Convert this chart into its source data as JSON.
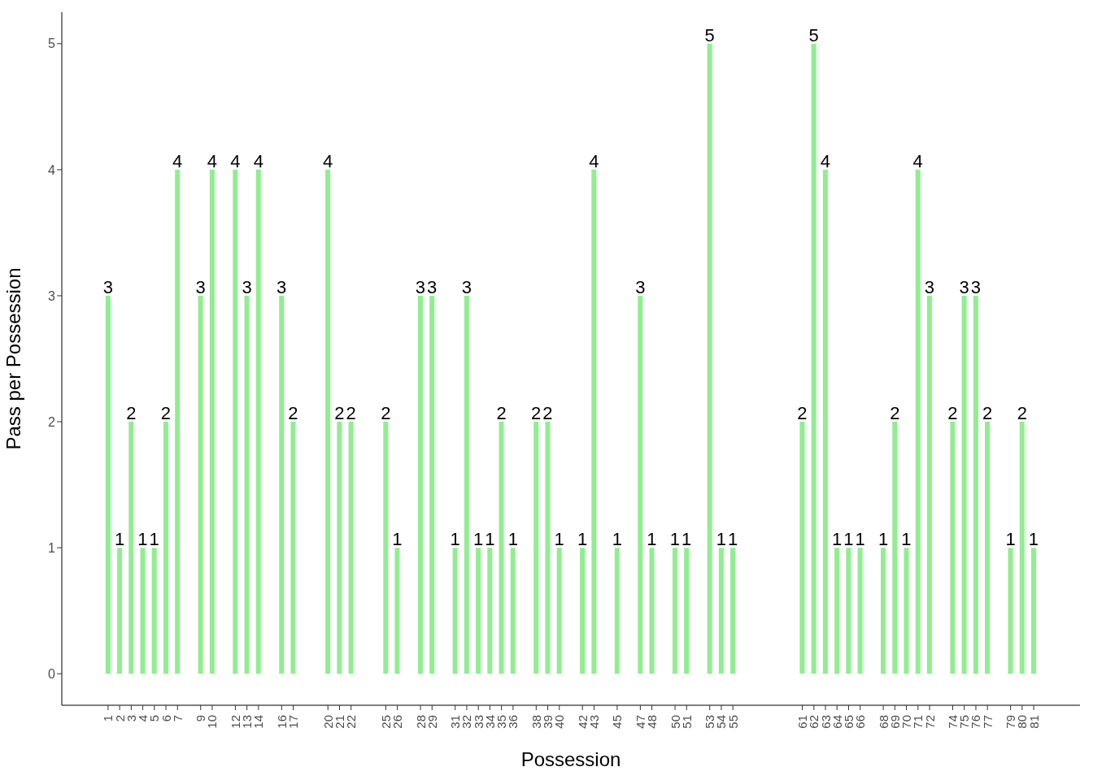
{
  "chart_data": {
    "type": "bar",
    "xlabel": "Possession",
    "ylabel": "Pass per Possession",
    "x": [
      1,
      2,
      3,
      4,
      5,
      6,
      7,
      9,
      10,
      12,
      13,
      14,
      16,
      17,
      20,
      21,
      22,
      25,
      26,
      28,
      29,
      31,
      32,
      33,
      34,
      35,
      36,
      38,
      39,
      40,
      42,
      43,
      45,
      47,
      48,
      50,
      51,
      53,
      54,
      55,
      61,
      62,
      63,
      64,
      65,
      66,
      68,
      69,
      70,
      71,
      72,
      74,
      75,
      76,
      77,
      79,
      80,
      81
    ],
    "values": [
      3,
      1,
      2,
      1,
      1,
      2,
      4,
      3,
      4,
      4,
      3,
      4,
      3,
      2,
      4,
      2,
      2,
      2,
      1,
      3,
      3,
      1,
      3,
      1,
      1,
      2,
      1,
      2,
      2,
      1,
      1,
      4,
      1,
      3,
      1,
      1,
      1,
      5,
      1,
      1,
      2,
      5,
      4,
      1,
      1,
      1,
      1,
      2,
      1,
      4,
      3,
      2,
      3,
      3,
      2,
      1,
      2,
      1
    ],
    "color": "#90ee90",
    "xlim": [
      -3,
      85
    ],
    "xticks": [
      1,
      2,
      3,
      4,
      5,
      6,
      7,
      9,
      10,
      12,
      13,
      14,
      16,
      17,
      20,
      21,
      22,
      25,
      26,
      28,
      29,
      31,
      32,
      33,
      34,
      35,
      36,
      38,
      39,
      40,
      42,
      43,
      45,
      47,
      48,
      50,
      51,
      53,
      54,
      55,
      61,
      62,
      63,
      64,
      65,
      66,
      68,
      69,
      70,
      71,
      72,
      74,
      75,
      76,
      77,
      79,
      80,
      81
    ],
    "ylim": [
      -0.25,
      5.25
    ],
    "yticks": [
      0,
      1,
      2,
      3,
      4,
      5
    ],
    "data_labels": true,
    "grid": false
  }
}
